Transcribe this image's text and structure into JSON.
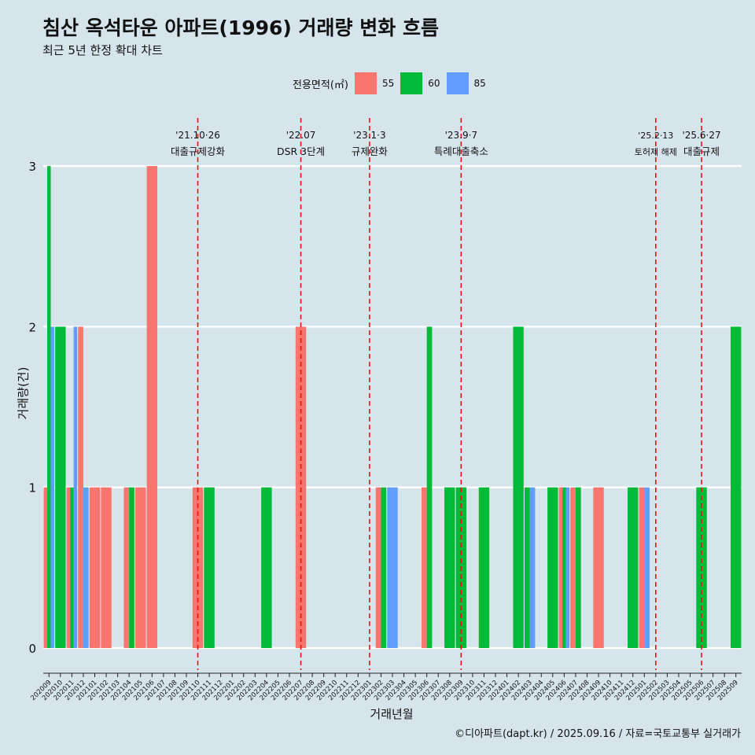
{
  "title": "침산 옥석타운 아파트(1996) 거래량 변화 흐름",
  "subtitle": "최근 5년 한정 확대 차트",
  "legend_title": "전용면적(㎡)",
  "xlabel": "거래년월",
  "ylabel": "거래량(건)",
  "caption": "©디아파트(dapt.kr) / 2025.09.16 / 자료=국토교통부 실거래가",
  "colors": {
    "background": "#d6e4eb",
    "s55": "#f8766d",
    "s60": "#00ba38",
    "s85": "#619cff",
    "vline": "#ee1111",
    "grid": "#ffffff"
  },
  "chart_data": {
    "type": "bar",
    "position": "dodge",
    "ylim": [
      0,
      3
    ],
    "yticks": [
      0,
      1,
      2,
      3
    ],
    "categories": [
      "202009",
      "202010",
      "202011",
      "202012",
      "202101",
      "202102",
      "202103",
      "202104",
      "202105",
      "202106",
      "202107",
      "202108",
      "202109",
      "202110",
      "202111",
      "202112",
      "202201",
      "202202",
      "202203",
      "202204",
      "202205",
      "202206",
      "202207",
      "202208",
      "202209",
      "202210",
      "202211",
      "202212",
      "202301",
      "202302",
      "202303",
      "202304",
      "202305",
      "202306",
      "202307",
      "202308",
      "202309",
      "202310",
      "202311",
      "202312",
      "202401",
      "202402",
      "202403",
      "202404",
      "202405",
      "202406",
      "202407",
      "202408",
      "202409",
      "202410",
      "202411",
      "202412",
      "202501",
      "202502",
      "202503",
      "202504",
      "202505",
      "202506",
      "202507",
      "202508",
      "202509"
    ],
    "series": [
      {
        "name": "55",
        "values": [
          1,
          0,
          1,
          2,
          1,
          1,
          0,
          1,
          1,
          3,
          0,
          0,
          0,
          1,
          0,
          0,
          0,
          0,
          0,
          0,
          0,
          0,
          2,
          0,
          0,
          0,
          0,
          0,
          0,
          1,
          0,
          0,
          0,
          1,
          0,
          0,
          0,
          0,
          0,
          0,
          0,
          0,
          0,
          0,
          0,
          1,
          1,
          0,
          1,
          0,
          0,
          0,
          1,
          0,
          0,
          0,
          0,
          0,
          0,
          0,
          0
        ]
      },
      {
        "name": "60",
        "values": [
          3,
          2,
          1,
          0,
          0,
          0,
          0,
          1,
          0,
          0,
          0,
          0,
          0,
          0,
          1,
          0,
          0,
          0,
          0,
          1,
          0,
          0,
          0,
          0,
          0,
          0,
          0,
          0,
          0,
          1,
          0,
          0,
          0,
          2,
          0,
          1,
          1,
          0,
          1,
          0,
          0,
          2,
          1,
          0,
          1,
          1,
          1,
          0,
          0,
          0,
          0,
          1,
          0,
          0,
          0,
          0,
          0,
          1,
          0,
          0,
          2
        ]
      },
      {
        "name": "85",
        "values": [
          2,
          0,
          2,
          1,
          0,
          0,
          0,
          0,
          0,
          0,
          0,
          0,
          0,
          0,
          0,
          0,
          0,
          0,
          0,
          0,
          0,
          0,
          0,
          0,
          0,
          0,
          0,
          0,
          0,
          0,
          1,
          0,
          0,
          0,
          0,
          0,
          0,
          0,
          0,
          0,
          0,
          0,
          1,
          0,
          0,
          1,
          0,
          0,
          0,
          0,
          0,
          0,
          1,
          0,
          0,
          0,
          0,
          0,
          0,
          0,
          0
        ]
      }
    ],
    "events": [
      {
        "month": "202110",
        "date": "'21.10·26",
        "label": "대출규제강화"
      },
      {
        "month": "202207",
        "date": "'22.07",
        "label": "DSR 3단계"
      },
      {
        "month": "202301",
        "date": "'23.1·3",
        "label": "규제완화"
      },
      {
        "month": "202309",
        "date": "'23.9·7",
        "label": "특례대출축소"
      },
      {
        "month": "202502",
        "date": "'25.2·13",
        "label": "토허제 해제"
      },
      {
        "month": "202506",
        "date": "'25.6·27",
        "label": "대출규제"
      }
    ]
  }
}
